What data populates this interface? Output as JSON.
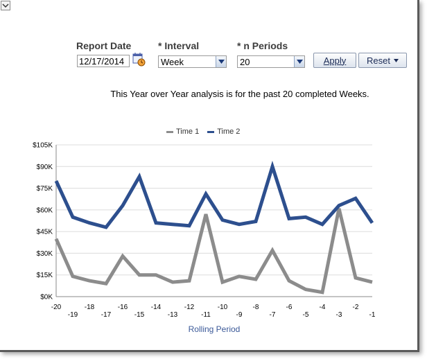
{
  "filters": {
    "report_date": {
      "label": "Report Date",
      "value": "12/17/2014"
    },
    "interval": {
      "label": "* Interval",
      "value": "Week"
    },
    "n_periods": {
      "label": "* n Periods",
      "value": "20"
    }
  },
  "buttons": {
    "apply": "Apply",
    "reset": "Reset"
  },
  "info_text": "This Year over Year analysis is for the past 20 completed Weeks.",
  "colors": {
    "time1": "#8c8c8c",
    "time2": "#2d4f8e"
  },
  "chart_data": {
    "type": "line",
    "x": [
      -20,
      -19,
      -18,
      -17,
      -16,
      -15,
      -14,
      -13,
      -12,
      -11,
      -10,
      -9,
      -8,
      -7,
      -6,
      -5,
      -4,
      -3,
      -2,
      -1
    ],
    "series": [
      {
        "name": "Time 1",
        "values": [
          40,
          14,
          11,
          9,
          28,
          15,
          15,
          10,
          11,
          57,
          10,
          14,
          12,
          32,
          11,
          5,
          3,
          61,
          13,
          10
        ]
      },
      {
        "name": "Time 2",
        "values": [
          80,
          55,
          51,
          48,
          63,
          83,
          51,
          50,
          49,
          71,
          53,
          50,
          52,
          90,
          54,
          55,
          50,
          63,
          68,
          51
        ]
      }
    ],
    "xlabel": "Rolling Period",
    "ylabel": "",
    "ylim": [
      0,
      105
    ],
    "y_ticks": [
      "$0K",
      "$15K",
      "$30K",
      "$45K",
      "$60K",
      "$75K",
      "$90K",
      "$105K"
    ],
    "x_ticks": [
      "-20",
      "-19",
      "-18",
      "-17",
      "-16",
      "-15",
      "-14",
      "-13",
      "-12",
      "-11",
      "-10",
      "-9",
      "-8",
      "-7",
      "-6",
      "-5",
      "-4",
      "-3",
      "-2",
      "-1"
    ],
    "legend": "top",
    "grid": true
  }
}
